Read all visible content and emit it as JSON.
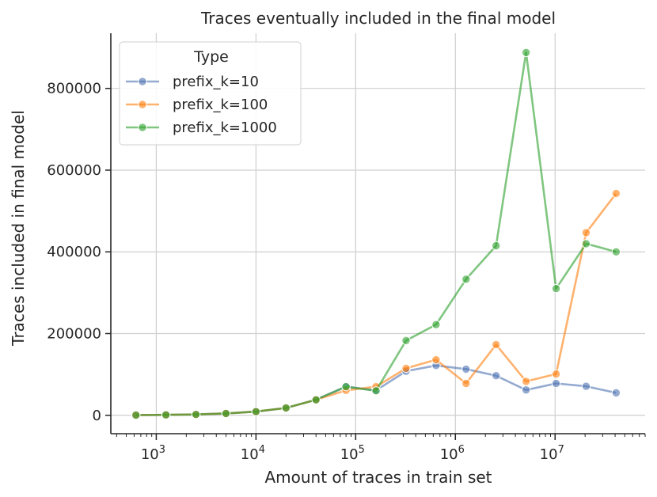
{
  "chart_data": {
    "type": "line",
    "title": "Traces eventually included in the final model",
    "xlabel": "Amount of traces in train set",
    "ylabel": "Traces included in final model",
    "xscale": "log",
    "xlim": [
      350,
      80000000
    ],
    "ylim": [
      -45000,
      935000
    ],
    "yticks": [
      0,
      200000,
      400000,
      600000,
      800000
    ],
    "ytick_labels": [
      "0",
      "200000",
      "400000",
      "600000",
      "800000"
    ],
    "xticks": [
      1000,
      10000,
      100000,
      1000000,
      10000000
    ],
    "xtick_bases": [
      "10",
      "10",
      "10",
      "10",
      "10"
    ],
    "xtick_exponents": [
      "3",
      "4",
      "5",
      "6",
      "7"
    ],
    "grid": true,
    "legend": {
      "title": "Type",
      "placement": "top-left"
    },
    "series": [
      {
        "name": "prefix_k=10",
        "color": "#4c72b0",
        "x": [
          625,
          1250,
          2500,
          5000,
          10000,
          20000,
          40000,
          80000,
          160000,
          320000,
          640000,
          1280000,
          2560000,
          5120000,
          10240000,
          20480000,
          40960000
        ],
        "y": [
          500,
          1000,
          2000,
          4500,
          9000,
          18000,
          38000,
          70000,
          61000,
          108000,
          122000,
          113000,
          97000,
          62000,
          78000,
          71000,
          55000
        ]
      },
      {
        "name": "prefix_k=100",
        "color": "#ff7f0e",
        "x": [
          625,
          1250,
          2500,
          5000,
          10000,
          20000,
          40000,
          80000,
          160000,
          320000,
          640000,
          1280000,
          2560000,
          5120000,
          10240000,
          20480000,
          40960000
        ],
        "y": [
          500,
          1000,
          2000,
          4500,
          9000,
          18000,
          38000,
          61000,
          70000,
          115000,
          136000,
          78000,
          173000,
          83000,
          101000,
          447000,
          543000
        ]
      },
      {
        "name": "prefix_k=1000",
        "color": "#2ca02c",
        "x": [
          625,
          1250,
          2500,
          5000,
          10000,
          20000,
          40000,
          80000,
          160000,
          320000,
          640000,
          1280000,
          2560000,
          5120000,
          10240000,
          20480000,
          40960000
        ],
        "y": [
          500,
          1000,
          2000,
          4500,
          9000,
          18000,
          38000,
          70000,
          60000,
          183000,
          222000,
          333000,
          415000,
          888000,
          310000,
          420000,
          400000
        ]
      }
    ]
  }
}
